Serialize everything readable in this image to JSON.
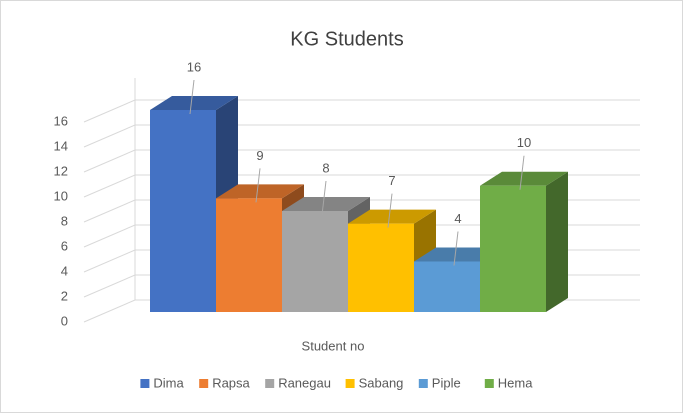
{
  "chart_data": {
    "type": "bar3d",
    "title": "KG Students",
    "categories": [
      "Student no"
    ],
    "series": [
      {
        "name": "Dima",
        "color": "#4472c4",
        "values": [
          16
        ]
      },
      {
        "name": "Rapsa",
        "color": "#ed7d31",
        "values": [
          9
        ]
      },
      {
        "name": "Ranegau",
        "color": "#a5a5a5",
        "values": [
          8
        ]
      },
      {
        "name": "Sabang",
        "color": "#ffc000",
        "values": [
          7
        ]
      },
      {
        "name": "Piple",
        "color": "#5b9bd5",
        "values": [
          4
        ]
      },
      {
        "name": "Hema",
        "color": "#70ad47",
        "values": [
          10
        ]
      }
    ],
    "ylim": [
      0,
      16
    ],
    "yticks": [
      0,
      2,
      4,
      6,
      8,
      10,
      12,
      14,
      16
    ],
    "grid": true,
    "legend": "bottom"
  }
}
